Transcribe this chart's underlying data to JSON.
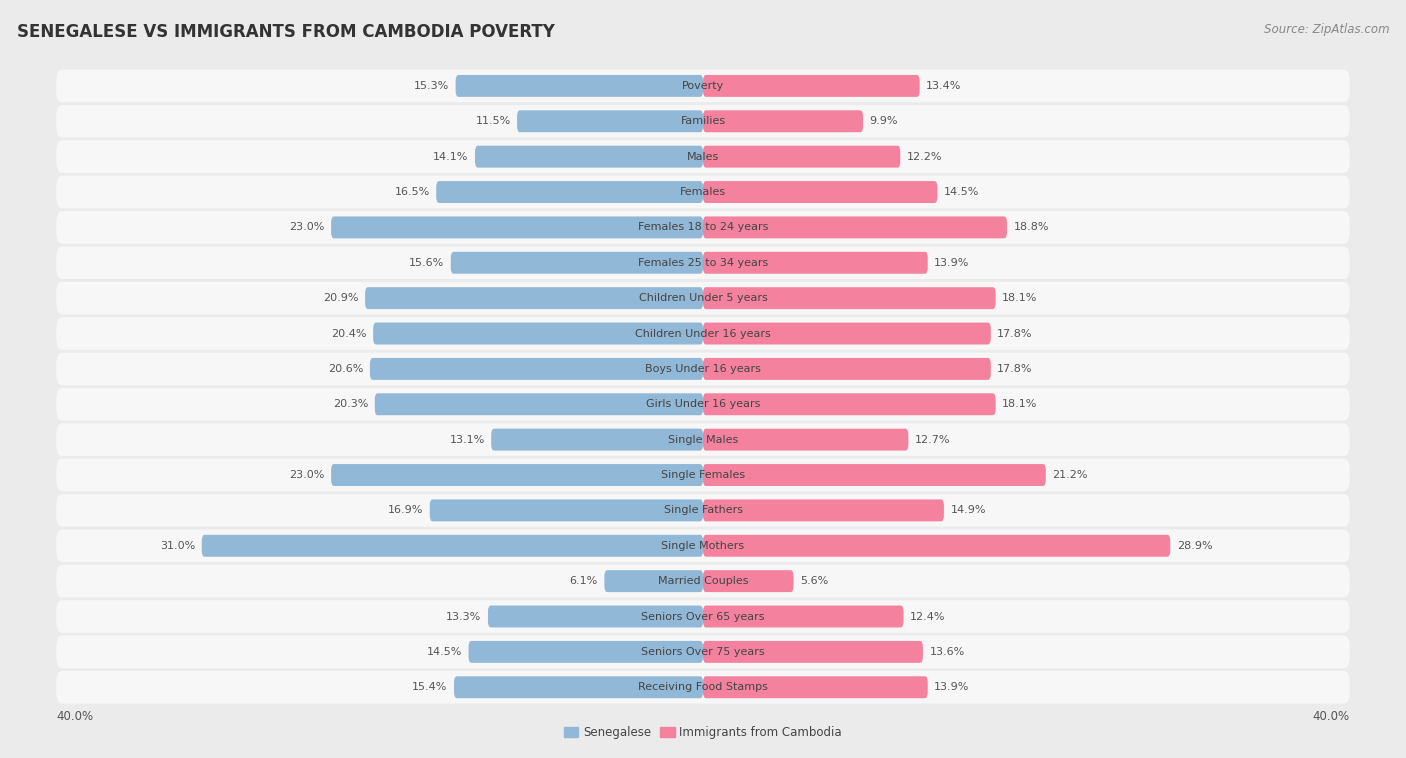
{
  "title": "SENEGALESE VS IMMIGRANTS FROM CAMBODIA POVERTY",
  "source": "Source: ZipAtlas.com",
  "categories": [
    "Poverty",
    "Families",
    "Males",
    "Females",
    "Females 18 to 24 years",
    "Females 25 to 34 years",
    "Children Under 5 years",
    "Children Under 16 years",
    "Boys Under 16 years",
    "Girls Under 16 years",
    "Single Males",
    "Single Females",
    "Single Fathers",
    "Single Mothers",
    "Married Couples",
    "Seniors Over 65 years",
    "Seniors Over 75 years",
    "Receiving Food Stamps"
  ],
  "senegalese": [
    15.3,
    11.5,
    14.1,
    16.5,
    23.0,
    15.6,
    20.9,
    20.4,
    20.6,
    20.3,
    13.1,
    23.0,
    16.9,
    31.0,
    6.1,
    13.3,
    14.5,
    15.4
  ],
  "cambodia": [
    13.4,
    9.9,
    12.2,
    14.5,
    18.8,
    13.9,
    18.1,
    17.8,
    17.8,
    18.1,
    12.7,
    21.2,
    14.9,
    28.9,
    5.6,
    12.4,
    13.6,
    13.9
  ],
  "senegalese_color": "#92b8d8",
  "cambodia_color": "#f4829e",
  "background_color": "#ebebeb",
  "bar_background_color": "#f7f7f7",
  "bar_height": 0.62,
  "xlim": 40,
  "legend_senegalese": "Senegalese",
  "legend_cambodia": "Immigrants from Cambodia",
  "title_fontsize": 12,
  "source_fontsize": 8.5,
  "label_fontsize": 8,
  "category_fontsize": 8,
  "value_color": "#555555"
}
